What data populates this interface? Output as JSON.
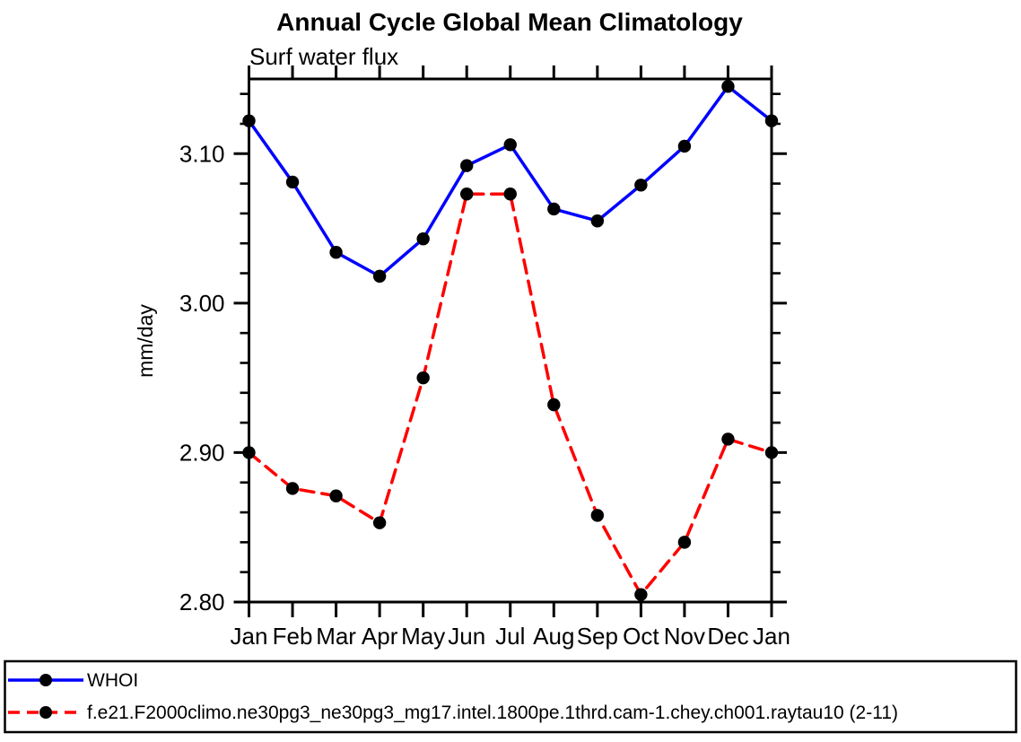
{
  "page": {
    "background": "#ffffff",
    "frame_color": "#000000"
  },
  "chart_data": {
    "type": "line",
    "title": "Annual Cycle Global Mean Climatology",
    "subtitle": "Surf water flux",
    "xlabel": "",
    "ylabel": "mm/day",
    "categories": [
      "Jan",
      "Feb",
      "Mar",
      "Apr",
      "May",
      "Jun",
      "Jul",
      "Aug",
      "Sep",
      "Oct",
      "Nov",
      "Dec",
      "Jan"
    ],
    "ylim": [
      2.8,
      3.15
    ],
    "yticks_major": [
      2.8,
      2.9,
      3.0,
      3.1
    ],
    "ytick_minor_step": 0.02,
    "grid": false,
    "legend_position": "bottom-box",
    "series": [
      {
        "name": "WHOI",
        "color": "#0000ff",
        "style": "solid",
        "marker": "circle",
        "marker_color": "#000000",
        "values": [
          3.122,
          3.081,
          3.034,
          3.018,
          3.043,
          3.092,
          3.106,
          3.063,
          3.055,
          3.079,
          3.105,
          3.145,
          3.122
        ]
      },
      {
        "name": "f.e21.F2000climo.ne30pg3_ne30pg3_mg17.intel.1800pe.1thrd.cam-1.chey.ch001.raytau10 (2-11)",
        "color": "#ff0000",
        "style": "dashed",
        "marker": "circle",
        "marker_color": "#000000",
        "values": [
          2.9,
          2.876,
          2.871,
          2.853,
          2.95,
          3.073,
          3.073,
          2.932,
          2.858,
          2.805,
          2.84,
          2.909,
          2.9
        ]
      }
    ]
  }
}
